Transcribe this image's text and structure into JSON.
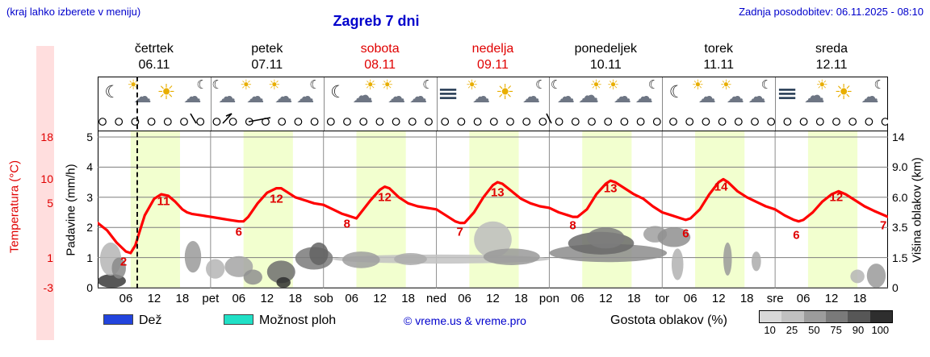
{
  "header": {
    "hint": "(kraj lahko izberete v meniju)",
    "title": "Zagreb 7 dni",
    "updated": "Zadnja posodobitev: 06.11.2025 - 08:10"
  },
  "days": [
    {
      "name": "četrtek",
      "date": "06.11",
      "red": false,
      "icons": [
        "moon",
        "sun-cloud",
        "sun",
        "cloud-moon"
      ]
    },
    {
      "name": "petek",
      "date": "07.11",
      "red": false,
      "icons": [
        "moon-cloud",
        "sun-cloud",
        "sun-cloud",
        "cloud-moon"
      ]
    },
    {
      "name": "sobota",
      "date": "08.11",
      "red": true,
      "icons": [
        "moon",
        "cloud-sun",
        "sun-cloud",
        "cloud-moon"
      ]
    },
    {
      "name": "nedelja",
      "date": "09.11",
      "red": true,
      "icons": [
        "fog",
        "sun-cloud",
        "sun",
        "cloud-moon"
      ]
    },
    {
      "name": "ponedeljek",
      "date": "10.11",
      "red": false,
      "icons": [
        "moon-cloud",
        "cloud-sun",
        "sun-cloud",
        "cloud-moon"
      ]
    },
    {
      "name": "torek",
      "date": "11.11",
      "red": false,
      "icons": [
        "moon",
        "sun-cloud",
        "sun-cloud",
        "cloud-moon"
      ]
    },
    {
      "name": "sreda",
      "date": "12.11",
      "red": false,
      "icons": [
        "fog",
        "cloud-sun",
        "sun",
        "cloud-moon"
      ]
    }
  ],
  "axes": {
    "temp": {
      "label": "Temperatura (°C)",
      "ticks": [
        {
          "t": "18",
          "y": 170
        },
        {
          "t": "10",
          "y": 222
        },
        {
          "t": "5",
          "y": 252
        },
        {
          "t": "1",
          "y": 320
        },
        {
          "t": "-3",
          "y": 357
        }
      ]
    },
    "precip": {
      "label": "Padavine (mm/h)",
      "ticks": [
        {
          "t": "5",
          "v": 5
        },
        {
          "t": "4",
          "v": 4
        },
        {
          "t": "3",
          "v": 3
        },
        {
          "t": "2",
          "v": 2
        },
        {
          "t": "1",
          "v": 1
        },
        {
          "t": "0",
          "v": 0
        }
      ]
    },
    "cloud": {
      "label": "Višina oblakov (km)",
      "ticks": [
        {
          "t": "14",
          "v": 5
        },
        {
          "t": "9.0",
          "v": 4
        },
        {
          "t": "6.0",
          "v": 3
        },
        {
          "t": "3.5",
          "v": 2
        },
        {
          "t": "1.5",
          "v": 1
        },
        {
          "t": "0",
          "v": 0
        }
      ]
    }
  },
  "xaxis": [
    {
      "t": "06",
      "h": 6
    },
    {
      "t": "12",
      "h": 12
    },
    {
      "t": "18",
      "h": 18
    },
    {
      "t": "pet",
      "h": 24
    },
    {
      "t": "06",
      "h": 30
    },
    {
      "t": "12",
      "h": 36
    },
    {
      "t": "18",
      "h": 42
    },
    {
      "t": "sob",
      "h": 48
    },
    {
      "t": "06",
      "h": 54
    },
    {
      "t": "12",
      "h": 60
    },
    {
      "t": "18",
      "h": 66
    },
    {
      "t": "ned",
      "h": 72
    },
    {
      "t": "06",
      "h": 78
    },
    {
      "t": "12",
      "h": 84
    },
    {
      "t": "18",
      "h": 90
    },
    {
      "t": "pon",
      "h": 96
    },
    {
      "t": "06",
      "h": 102
    },
    {
      "t": "12",
      "h": 108
    },
    {
      "t": "18",
      "h": 114
    },
    {
      "t": "tor",
      "h": 120
    },
    {
      "t": "06",
      "h": 126
    },
    {
      "t": "12",
      "h": 132
    },
    {
      "t": "18",
      "h": 138
    },
    {
      "t": "sre",
      "h": 144
    },
    {
      "t": "06",
      "h": 150
    },
    {
      "t": "12",
      "h": 156
    },
    {
      "t": "18",
      "h": 162
    }
  ],
  "legend": {
    "rain_label": "Dež",
    "rain_color": "#2244dd",
    "showers_label": "Možnost ploh",
    "showers_color": "#20e0c6",
    "copyright": "© vreme.us & vreme.pro",
    "density_label": "Gostota oblakov (%)",
    "density_ticks": [
      "10",
      "25",
      "50",
      "75",
      "90",
      "100"
    ],
    "density_colors": [
      "#d8d8d8",
      "#c0c0c0",
      "#9c9c9c",
      "#7a7a7a",
      "#575757",
      "#2e2e2e"
    ]
  },
  "chart_data": {
    "type": "line",
    "title": "Zagreb 7 dni",
    "x_unit": "hours from Thursday 00:00",
    "x_range": [
      0,
      168
    ],
    "grid_values": [
      0,
      1,
      2,
      3,
      4,
      5
    ],
    "precip_axis_ticks": [
      5,
      4,
      3,
      2,
      1,
      0
    ],
    "temp_axis_tick_labels": [
      "18",
      "10",
      "5",
      "1",
      "-3"
    ],
    "cloud_axis_tick_labels": [
      "14",
      "9.0",
      "6.0",
      "3.5",
      "1.5",
      "0"
    ],
    "day_band_color": "#f2ffcf",
    "day_bands": [
      [
        7,
        17.5
      ],
      [
        31,
        41.5
      ],
      [
        55,
        65.5
      ],
      [
        79,
        89.5
      ],
      [
        103,
        113.5
      ],
      [
        127,
        137.5
      ],
      [
        151,
        161.5
      ]
    ],
    "now_line_hour": 8.17,
    "temperature_curve_color": "#ff0000",
    "temperature_curve_points": [
      [
        0,
        2.15
      ],
      [
        2,
        1.9
      ],
      [
        4,
        1.5
      ],
      [
        6,
        1.2
      ],
      [
        7,
        1.15
      ],
      [
        8,
        1.4
      ],
      [
        9,
        1.9
      ],
      [
        10,
        2.4
      ],
      [
        12,
        2.95
      ],
      [
        13.5,
        3.1
      ],
      [
        15,
        3.05
      ],
      [
        16.5,
        2.85
      ],
      [
        18,
        2.6
      ],
      [
        19,
        2.5
      ],
      [
        20,
        2.45
      ],
      [
        22,
        2.4
      ],
      [
        24,
        2.35
      ],
      [
        26,
        2.3
      ],
      [
        28,
        2.25
      ],
      [
        30,
        2.2
      ],
      [
        31,
        2.2
      ],
      [
        32,
        2.35
      ],
      [
        34,
        2.8
      ],
      [
        36,
        3.15
      ],
      [
        38,
        3.3
      ],
      [
        39,
        3.3
      ],
      [
        40,
        3.2
      ],
      [
        42,
        3.0
      ],
      [
        44,
        2.9
      ],
      [
        46,
        2.8
      ],
      [
        48,
        2.75
      ],
      [
        50,
        2.6
      ],
      [
        52,
        2.45
      ],
      [
        53,
        2.4
      ],
      [
        54,
        2.35
      ],
      [
        55,
        2.3
      ],
      [
        56,
        2.5
      ],
      [
        58,
        2.9
      ],
      [
        60,
        3.25
      ],
      [
        61,
        3.35
      ],
      [
        62,
        3.3
      ],
      [
        64,
        3.0
      ],
      [
        66,
        2.8
      ],
      [
        68,
        2.7
      ],
      [
        70,
        2.65
      ],
      [
        72,
        2.6
      ],
      [
        74,
        2.4
      ],
      [
        76,
        2.2
      ],
      [
        77,
        2.15
      ],
      [
        78,
        2.15
      ],
      [
        80,
        2.5
      ],
      [
        82,
        3.0
      ],
      [
        84,
        3.4
      ],
      [
        85,
        3.5
      ],
      [
        86,
        3.45
      ],
      [
        88,
        3.2
      ],
      [
        90,
        2.95
      ],
      [
        92,
        2.8
      ],
      [
        94,
        2.7
      ],
      [
        96,
        2.65
      ],
      [
        98,
        2.5
      ],
      [
        100,
        2.4
      ],
      [
        101,
        2.35
      ],
      [
        102,
        2.35
      ],
      [
        104,
        2.6
      ],
      [
        106,
        3.1
      ],
      [
        108,
        3.45
      ],
      [
        109,
        3.55
      ],
      [
        110,
        3.5
      ],
      [
        112,
        3.3
      ],
      [
        114,
        3.1
      ],
      [
        116,
        2.95
      ],
      [
        118,
        2.7
      ],
      [
        120,
        2.5
      ],
      [
        122,
        2.4
      ],
      [
        124,
        2.3
      ],
      [
        125,
        2.25
      ],
      [
        126,
        2.3
      ],
      [
        128,
        2.6
      ],
      [
        130,
        3.1
      ],
      [
        132,
        3.5
      ],
      [
        133,
        3.6
      ],
      [
        134,
        3.5
      ],
      [
        136,
        3.2
      ],
      [
        138,
        3.0
      ],
      [
        140,
        2.85
      ],
      [
        142,
        2.7
      ],
      [
        144,
        2.6
      ],
      [
        146,
        2.4
      ],
      [
        148,
        2.25
      ],
      [
        149,
        2.2
      ],
      [
        150,
        2.25
      ],
      [
        152,
        2.5
      ],
      [
        154,
        2.85
      ],
      [
        156,
        3.1
      ],
      [
        157.5,
        3.2
      ],
      [
        159,
        3.1
      ],
      [
        161,
        2.9
      ],
      [
        163,
        2.7
      ],
      [
        165,
        2.55
      ],
      [
        168,
        2.35
      ]
    ],
    "temperature_labels_c": [
      {
        "t": "2",
        "h": 5.5,
        "v": 0.85
      },
      {
        "t": "11",
        "h": 14,
        "v": 2.85
      },
      {
        "t": "6",
        "h": 30,
        "v": 1.85
      },
      {
        "t": "12",
        "h": 38,
        "v": 2.95
      },
      {
        "t": "8",
        "h": 53,
        "v": 2.1
      },
      {
        "t": "12",
        "h": 61,
        "v": 3.0
      },
      {
        "t": "7",
        "h": 77,
        "v": 1.85
      },
      {
        "t": "13",
        "h": 85,
        "v": 3.15
      },
      {
        "t": "8",
        "h": 101,
        "v": 2.05
      },
      {
        "t": "13",
        "h": 109,
        "v": 3.3
      },
      {
        "t": "6",
        "h": 125,
        "v": 1.8
      },
      {
        "t": "14",
        "h": 132.5,
        "v": 3.35
      },
      {
        "t": "6",
        "h": 148.5,
        "v": 1.75
      },
      {
        "t": "12",
        "h": 157,
        "v": 3.0
      },
      {
        "t": "7",
        "h": 167,
        "v": 2.05
      }
    ],
    "cloud_blobs": [
      [
        0,
        6,
        0,
        0.45,
        "#3a3a3a"
      ],
      [
        0.5,
        5,
        0.4,
        1.5,
        "#b5b5b5"
      ],
      [
        3,
        6,
        0.3,
        1.0,
        "#8a8a8a"
      ],
      [
        18.5,
        22,
        0.5,
        1.55,
        "#9a9a9a"
      ],
      [
        23,
        27,
        0.3,
        0.95,
        "#b5b5b5"
      ],
      [
        27,
        33,
        0.35,
        1.05,
        "#a5a5a5"
      ],
      [
        31,
        35,
        0.1,
        0.6,
        "#8f8f8f"
      ],
      [
        36,
        42,
        0.15,
        0.9,
        "#6f6f6f"
      ],
      [
        38,
        41,
        0,
        0.35,
        "#2f2f2f"
      ],
      [
        42,
        50,
        0.6,
        1.35,
        "#7a7a7a"
      ],
      [
        45,
        49,
        0.75,
        1.5,
        "#636363"
      ],
      [
        50,
        96,
        0.8,
        1.1,
        "#c2c2c2"
      ],
      [
        52,
        60,
        0.65,
        1.2,
        "#9f9f9f"
      ],
      [
        63,
        70,
        0.75,
        1.15,
        "#ababab"
      ],
      [
        80,
        88,
        1.0,
        2.2,
        "#bdbdbd"
      ],
      [
        82,
        94,
        0.75,
        1.3,
        "#999999"
      ],
      [
        96,
        121,
        0.85,
        1.45,
        "#8c8c8c"
      ],
      [
        100,
        114,
        1.1,
        1.85,
        "#6a6a6a"
      ],
      [
        104,
        112,
        1.3,
        2.0,
        "#7d7d7d"
      ],
      [
        116,
        121,
        1.5,
        2.05,
        "#9f9f9f"
      ],
      [
        119,
        126,
        1.35,
        2.0,
        "#8f8f8f"
      ],
      [
        122,
        124.5,
        0.25,
        1.3,
        "#b2b2b2"
      ],
      [
        133,
        134.8,
        0.4,
        1.5,
        "#9a9a9a"
      ],
      [
        139,
        141,
        0.55,
        1.2,
        "#ababab"
      ],
      [
        160,
        163,
        0.15,
        0.6,
        "#b5b5b5"
      ],
      [
        163.5,
        167.5,
        0,
        0.8,
        "#9a9a9a"
      ]
    ],
    "cloudcover_circles_count": 49,
    "wind_barbs_local_x": [
      122,
      155,
      190,
      562
    ]
  }
}
